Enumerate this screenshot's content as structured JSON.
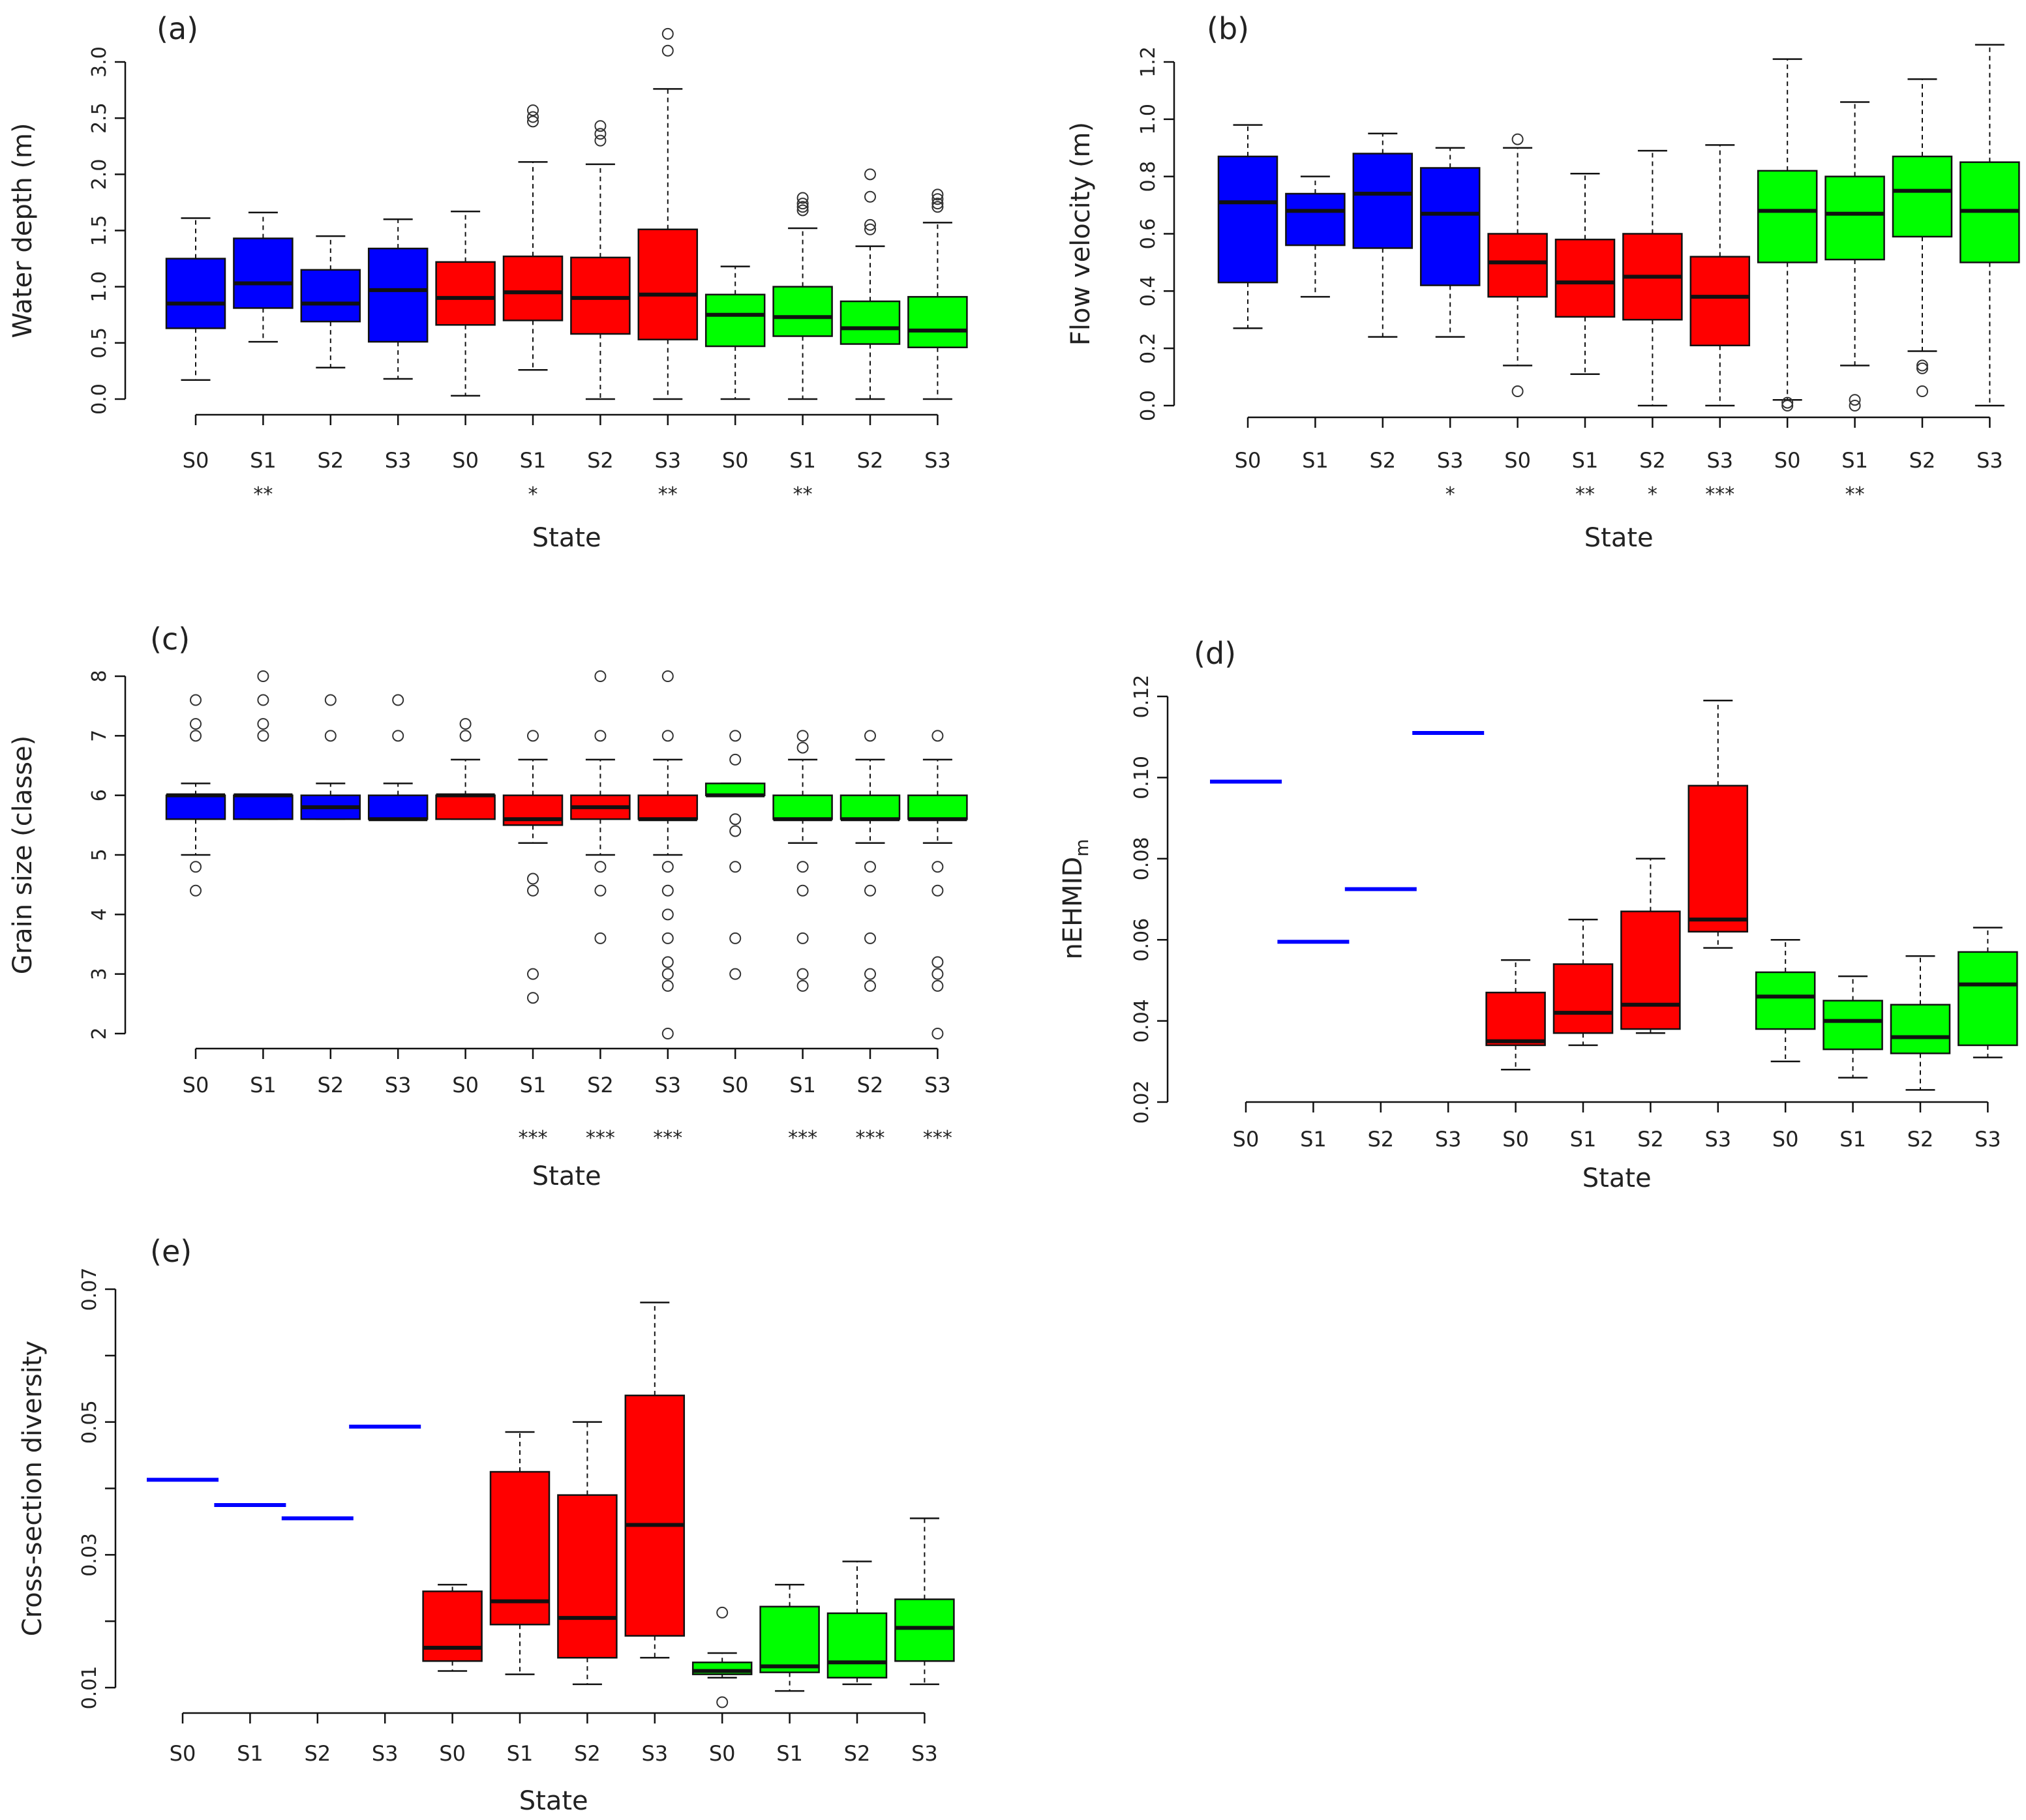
{
  "colors": {
    "blue": "#0000ff",
    "red": "#ff0000",
    "green": "#00ff00",
    "ink": "#111111"
  },
  "chart_data": [
    {
      "id": "a",
      "type": "boxplot",
      "panel_label": "(a)",
      "ylabel": "Water depth (m)",
      "xlabel": "State",
      "ylim": [
        0,
        3.0
      ],
      "yticks": [
        "0.0",
        "0.5",
        "1.0",
        "1.5",
        "2.0",
        "2.5",
        "3.0"
      ],
      "yticks_values": [
        0,
        0.5,
        1.0,
        1.5,
        2.0,
        2.5,
        3.0
      ],
      "categories": [
        "S0",
        "S1",
        "S2",
        "S3",
        "S0",
        "S1",
        "S2",
        "S3",
        "S0",
        "S1",
        "S2",
        "S3"
      ],
      "significance": [
        "",
        "**",
        "",
        "",
        "",
        "*",
        "",
        "**",
        "",
        "**",
        "",
        ""
      ],
      "boxes": [
        {
          "group": "blue",
          "min": 0.17,
          "q1": 0.63,
          "median": 0.85,
          "q3": 1.25,
          "max": 1.61,
          "outliers": []
        },
        {
          "group": "blue",
          "min": 0.51,
          "q1": 0.81,
          "median": 1.03,
          "q3": 1.43,
          "max": 1.66,
          "outliers": []
        },
        {
          "group": "blue",
          "min": 0.28,
          "q1": 0.69,
          "median": 0.85,
          "q3": 1.15,
          "max": 1.45,
          "outliers": []
        },
        {
          "group": "blue",
          "min": 0.18,
          "q1": 0.51,
          "median": 0.97,
          "q3": 1.34,
          "max": 1.6,
          "outliers": []
        },
        {
          "group": "red",
          "min": 0.03,
          "q1": 0.66,
          "median": 0.9,
          "q3": 1.22,
          "max": 1.67,
          "outliers": []
        },
        {
          "group": "red",
          "min": 0.26,
          "q1": 0.7,
          "median": 0.95,
          "q3": 1.27,
          "max": 2.11,
          "outliers": [
            2.47,
            2.51,
            2.57
          ]
        },
        {
          "group": "red",
          "min": 0.0,
          "q1": 0.58,
          "median": 0.9,
          "q3": 1.26,
          "max": 2.09,
          "outliers": [
            2.3,
            2.36,
            2.43
          ]
        },
        {
          "group": "red",
          "min": 0.0,
          "q1": 0.53,
          "median": 0.93,
          "q3": 1.51,
          "max": 2.76,
          "outliers": [
            3.1,
            3.25
          ]
        },
        {
          "group": "green",
          "min": 0.0,
          "q1": 0.47,
          "median": 0.75,
          "q3": 0.93,
          "max": 1.18,
          "outliers": []
        },
        {
          "group": "green",
          "min": 0.0,
          "q1": 0.56,
          "median": 0.73,
          "q3": 1.0,
          "max": 1.52,
          "outliers": [
            1.68,
            1.71,
            1.74,
            1.79
          ]
        },
        {
          "group": "green",
          "min": 0.0,
          "q1": 0.49,
          "median": 0.63,
          "q3": 0.87,
          "max": 1.36,
          "outliers": [
            1.51,
            1.55,
            1.8,
            2.0
          ]
        },
        {
          "group": "green",
          "min": 0.0,
          "q1": 0.46,
          "median": 0.61,
          "q3": 0.91,
          "max": 1.57,
          "outliers": [
            1.71,
            1.74,
            1.78,
            1.82
          ]
        }
      ]
    },
    {
      "id": "b",
      "type": "boxplot",
      "panel_label": "(b)",
      "ylabel": "Flow velocity (m)",
      "xlabel": "State",
      "ylim": [
        0,
        1.2
      ],
      "yticks": [
        "0.0",
        "0.2",
        "0.4",
        "0.6",
        "0.8",
        "1.0",
        "1.2"
      ],
      "yticks_values": [
        0,
        0.2,
        0.4,
        0.6,
        0.8,
        1.0,
        1.2
      ],
      "categories": [
        "S0",
        "S1",
        "S2",
        "S3",
        "S0",
        "S1",
        "S2",
        "S3",
        "S0",
        "S1",
        "S2",
        "S3"
      ],
      "significance": [
        "",
        "",
        "",
        "*",
        "",
        "**",
        "*",
        "***",
        "",
        "**",
        "",
        ""
      ],
      "boxes": [
        {
          "group": "blue",
          "min": 0.27,
          "q1": 0.43,
          "median": 0.71,
          "q3": 0.87,
          "max": 0.98,
          "outliers": []
        },
        {
          "group": "blue",
          "min": 0.38,
          "q1": 0.56,
          "median": 0.68,
          "q3": 0.74,
          "max": 0.8,
          "outliers": []
        },
        {
          "group": "blue",
          "min": 0.24,
          "q1": 0.55,
          "median": 0.74,
          "q3": 0.88,
          "max": 0.95,
          "outliers": []
        },
        {
          "group": "blue",
          "min": 0.24,
          "q1": 0.42,
          "median": 0.67,
          "q3": 0.83,
          "max": 0.9,
          "outliers": []
        },
        {
          "group": "red",
          "min": 0.14,
          "q1": 0.38,
          "median": 0.5,
          "q3": 0.6,
          "max": 0.9,
          "outliers": [
            0.05,
            0.93
          ]
        },
        {
          "group": "red",
          "min": 0.11,
          "q1": 0.31,
          "median": 0.43,
          "q3": 0.58,
          "max": 0.81,
          "outliers": []
        },
        {
          "group": "red",
          "min": 0.0,
          "q1": 0.3,
          "median": 0.45,
          "q3": 0.6,
          "max": 0.89,
          "outliers": []
        },
        {
          "group": "red",
          "min": 0.0,
          "q1": 0.21,
          "median": 0.38,
          "q3": 0.52,
          "max": 0.91,
          "outliers": []
        },
        {
          "group": "green",
          "min": 0.02,
          "q1": 0.5,
          "median": 0.68,
          "q3": 0.82,
          "max": 1.21,
          "outliers": [
            0.0,
            0.01
          ]
        },
        {
          "group": "green",
          "min": 0.14,
          "q1": 0.51,
          "median": 0.67,
          "q3": 0.8,
          "max": 1.06,
          "outliers": [
            0.0,
            0.02
          ]
        },
        {
          "group": "green",
          "min": 0.19,
          "q1": 0.59,
          "median": 0.75,
          "q3": 0.87,
          "max": 1.14,
          "outliers": [
            0.05,
            0.13,
            0.14
          ]
        },
        {
          "group": "green",
          "min": 0.0,
          "q1": 0.5,
          "median": 0.68,
          "q3": 0.85,
          "max": 1.26,
          "outliers": []
        }
      ]
    },
    {
      "id": "c",
      "type": "boxplot",
      "panel_label": "(c)",
      "ylabel": "Grain size (classe)",
      "xlabel": "State",
      "ylim": [
        2,
        8
      ],
      "yticks": [
        "2",
        "3",
        "4",
        "5",
        "6",
        "7",
        "8"
      ],
      "yticks_values": [
        2,
        3,
        4,
        5,
        6,
        7,
        8
      ],
      "categories": [
        "S0",
        "S1",
        "S2",
        "S3",
        "S0",
        "S1",
        "S2",
        "S3",
        "S0",
        "S1",
        "S2",
        "S3"
      ],
      "significance": [
        "",
        "",
        "",
        "",
        "",
        "***",
        "***",
        "***",
        "",
        "***",
        "***",
        "***"
      ],
      "boxes": [
        {
          "group": "blue",
          "min": 5.0,
          "q1": 5.6,
          "median": 6.0,
          "q3": 6.0,
          "max": 6.2,
          "outliers": [
            4.4,
            4.8,
            7.0,
            7.2,
            7.6
          ]
        },
        {
          "group": "blue",
          "min": 5.6,
          "q1": 5.6,
          "median": 6.0,
          "q3": 6.0,
          "max": 6.0,
          "outliers": [
            7.0,
            7.2,
            7.6,
            8.0
          ]
        },
        {
          "group": "blue",
          "min": 5.6,
          "q1": 5.6,
          "median": 5.8,
          "q3": 6.0,
          "max": 6.2,
          "outliers": [
            7.0,
            7.6
          ]
        },
        {
          "group": "blue",
          "min": 5.6,
          "q1": 5.6,
          "median": 5.6,
          "q3": 6.0,
          "max": 6.2,
          "outliers": [
            7.0,
            7.6
          ]
        },
        {
          "group": "red",
          "min": 5.6,
          "q1": 5.6,
          "median": 6.0,
          "q3": 6.0,
          "max": 6.6,
          "outliers": [
            7.0,
            7.2
          ]
        },
        {
          "group": "red",
          "min": 5.2,
          "q1": 5.5,
          "median": 5.6,
          "q3": 6.0,
          "max": 6.6,
          "outliers": [
            2.6,
            3.0,
            4.4,
            4.6,
            7.0
          ]
        },
        {
          "group": "red",
          "min": 5.0,
          "q1": 5.6,
          "median": 5.8,
          "q3": 6.0,
          "max": 6.6,
          "outliers": [
            3.6,
            4.4,
            4.8,
            7.0,
            8.0
          ]
        },
        {
          "group": "red",
          "min": 5.0,
          "q1": 5.6,
          "median": 5.6,
          "q3": 6.0,
          "max": 6.6,
          "outliers": [
            2.0,
            2.8,
            3.0,
            3.2,
            3.6,
            4.0,
            4.4,
            4.8,
            7.0,
            8.0
          ]
        },
        {
          "group": "green",
          "min": 6.0,
          "q1": 6.0,
          "median": 6.0,
          "q3": 6.2,
          "max": 6.2,
          "outliers": [
            3.0,
            3.6,
            4.8,
            5.4,
            5.6,
            6.6,
            7.0
          ]
        },
        {
          "group": "green",
          "min": 5.2,
          "q1": 5.6,
          "median": 5.6,
          "q3": 6.0,
          "max": 6.6,
          "outliers": [
            2.8,
            3.0,
            3.6,
            4.4,
            4.8,
            6.8,
            7.0
          ]
        },
        {
          "group": "green",
          "min": 5.2,
          "q1": 5.6,
          "median": 5.6,
          "q3": 6.0,
          "max": 6.6,
          "outliers": [
            2.8,
            3.0,
            3.6,
            4.4,
            4.8,
            7.0
          ]
        },
        {
          "group": "green",
          "min": 5.2,
          "q1": 5.6,
          "median": 5.6,
          "q3": 6.0,
          "max": 6.6,
          "outliers": [
            2.0,
            2.8,
            3.0,
            3.2,
            4.4,
            4.8,
            7.0
          ]
        }
      ]
    },
    {
      "id": "d",
      "type": "boxplot",
      "panel_label": "(d)",
      "ylabel": "nEHMID",
      "ylabel_sub": "m",
      "xlabel": "State",
      "ylim": [
        0.02,
        0.12
      ],
      "yticks": [
        "0.02",
        "0.04",
        "0.06",
        "0.08",
        "0.10",
        "0.12"
      ],
      "yticks_values": [
        0.02,
        0.04,
        0.06,
        0.08,
        0.1,
        0.12
      ],
      "categories": [
        "S0",
        "S1",
        "S2",
        "S3",
        "S0",
        "S1",
        "S2",
        "S3",
        "S0",
        "S1",
        "S2",
        "S3"
      ],
      "significance": [
        "",
        "",
        "",
        "",
        "",
        "",
        "",
        "",
        "",
        "",
        "",
        ""
      ],
      "boxes": [
        {
          "group": "blue",
          "min": 0.099,
          "q1": 0.099,
          "median": 0.099,
          "q3": 0.099,
          "max": 0.099,
          "outliers": []
        },
        {
          "group": "blue",
          "min": 0.0595,
          "q1": 0.0595,
          "median": 0.0595,
          "q3": 0.0595,
          "max": 0.0595,
          "outliers": []
        },
        {
          "group": "blue",
          "min": 0.0725,
          "q1": 0.0725,
          "median": 0.0725,
          "q3": 0.0725,
          "max": 0.0725,
          "outliers": []
        },
        {
          "group": "blue",
          "min": 0.111,
          "q1": 0.111,
          "median": 0.111,
          "q3": 0.111,
          "max": 0.111,
          "outliers": []
        },
        {
          "group": "red",
          "min": 0.028,
          "q1": 0.034,
          "median": 0.035,
          "q3": 0.047,
          "max": 0.055,
          "outliers": []
        },
        {
          "group": "red",
          "min": 0.034,
          "q1": 0.037,
          "median": 0.042,
          "q3": 0.054,
          "max": 0.065,
          "outliers": []
        },
        {
          "group": "red",
          "min": 0.037,
          "q1": 0.038,
          "median": 0.044,
          "q3": 0.067,
          "max": 0.08,
          "outliers": []
        },
        {
          "group": "red",
          "min": 0.058,
          "q1": 0.062,
          "median": 0.065,
          "q3": 0.098,
          "max": 0.119,
          "outliers": []
        },
        {
          "group": "green",
          "min": 0.03,
          "q1": 0.038,
          "median": 0.046,
          "q3": 0.052,
          "max": 0.06,
          "outliers": []
        },
        {
          "group": "green",
          "min": 0.026,
          "q1": 0.033,
          "median": 0.04,
          "q3": 0.045,
          "max": 0.051,
          "outliers": []
        },
        {
          "group": "green",
          "min": 0.023,
          "q1": 0.032,
          "median": 0.036,
          "q3": 0.044,
          "max": 0.056,
          "outliers": []
        },
        {
          "group": "green",
          "min": 0.031,
          "q1": 0.034,
          "median": 0.049,
          "q3": 0.057,
          "max": 0.063,
          "outliers": []
        }
      ]
    },
    {
      "id": "e",
      "type": "boxplot",
      "panel_label": "(e)",
      "ylabel": "Cross-section diversity",
      "xlabel": "State",
      "ylim": [
        0.01,
        0.07
      ],
      "yticks": [
        "0.01",
        "",
        "0.03",
        "",
        "0.05",
        "",
        "0.07"
      ],
      "yticks_values": [
        0.01,
        0.02,
        0.03,
        0.04,
        0.05,
        0.06,
        0.07
      ],
      "categories": [
        "S0",
        "S1",
        "S2",
        "S3",
        "S0",
        "S1",
        "S2",
        "S3",
        "S0",
        "S1",
        "S2",
        "S3"
      ],
      "significance": [
        "",
        "",
        "",
        "",
        "",
        "",
        "",
        "",
        "",
        "",
        "",
        ""
      ],
      "boxes": [
        {
          "group": "blue",
          "min": 0.0413,
          "q1": 0.0413,
          "median": 0.0413,
          "q3": 0.0413,
          "max": 0.0413,
          "outliers": []
        },
        {
          "group": "blue",
          "min": 0.0375,
          "q1": 0.0375,
          "median": 0.0375,
          "q3": 0.0375,
          "max": 0.0375,
          "outliers": []
        },
        {
          "group": "blue",
          "min": 0.0355,
          "q1": 0.0355,
          "median": 0.0355,
          "q3": 0.0355,
          "max": 0.0355,
          "outliers": []
        },
        {
          "group": "blue",
          "min": 0.0493,
          "q1": 0.0493,
          "median": 0.0493,
          "q3": 0.0493,
          "max": 0.0493,
          "outliers": []
        },
        {
          "group": "red",
          "min": 0.0125,
          "q1": 0.014,
          "median": 0.016,
          "q3": 0.0245,
          "max": 0.0255,
          "outliers": []
        },
        {
          "group": "red",
          "min": 0.012,
          "q1": 0.0195,
          "median": 0.023,
          "q3": 0.0425,
          "max": 0.0485,
          "outliers": []
        },
        {
          "group": "red",
          "min": 0.0105,
          "q1": 0.0145,
          "median": 0.0205,
          "q3": 0.039,
          "max": 0.05,
          "outliers": []
        },
        {
          "group": "red",
          "min": 0.0145,
          "q1": 0.0178,
          "median": 0.0345,
          "q3": 0.054,
          "max": 0.068,
          "outliers": []
        },
        {
          "group": "green",
          "min": 0.0115,
          "q1": 0.012,
          "median": 0.0125,
          "q3": 0.0138,
          "max": 0.0152,
          "outliers": [
            0.0078,
            0.0213
          ]
        },
        {
          "group": "green",
          "min": 0.0095,
          "q1": 0.0123,
          "median": 0.0132,
          "q3": 0.0222,
          "max": 0.0255,
          "outliers": []
        },
        {
          "group": "green",
          "min": 0.0105,
          "q1": 0.0115,
          "median": 0.0138,
          "q3": 0.0212,
          "max": 0.029,
          "outliers": []
        },
        {
          "group": "green",
          "min": 0.0105,
          "q1": 0.014,
          "median": 0.019,
          "q3": 0.0233,
          "max": 0.0355,
          "outliers": []
        }
      ]
    }
  ]
}
